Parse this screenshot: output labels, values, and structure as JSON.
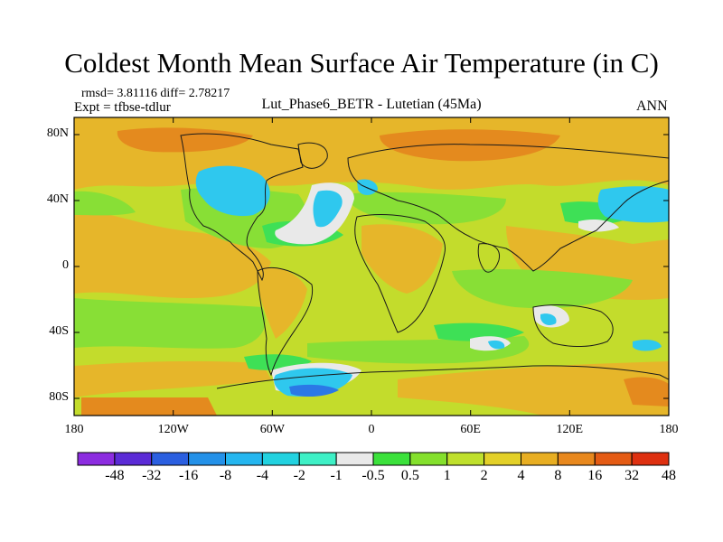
{
  "title": "Coldest Month Mean Surface Air Temperature (in C)",
  "stats": "rmsd= 3.81116 diff= 2.78217",
  "expt": "Expt = tfbse-tdlur",
  "subtitle": "Lut_Phase6_BETR - Lutetian (45Ma)",
  "season": "ANN",
  "lat_labels": [
    "80N",
    "40N",
    "0",
    "40S",
    "80S"
  ],
  "lon_labels": [
    "180",
    "120W",
    "60W",
    "0",
    "60E",
    "120E",
    "180"
  ],
  "colorbar": {
    "colors": [
      "#8c2ce0",
      "#5b2bd6",
      "#2b5fe0",
      "#2491e8",
      "#25b6ef",
      "#22d2e0",
      "#3ef0c6",
      "#e9e9e9",
      "#3be13b",
      "#84e02c",
      "#bfe02c",
      "#e3d028",
      "#e8ae22",
      "#e8881d",
      "#e45b14",
      "#de3010"
    ],
    "labels": [
      "-48",
      "-32",
      "-16",
      "-8",
      "-4",
      "-2",
      "-1",
      "-0.5",
      "0.5",
      "1",
      "2",
      "4",
      "8",
      "16",
      "32",
      "48"
    ]
  },
  "field_colors": {
    "base": "#c3dc2c",
    "warm": "#e6b62a",
    "hot": "#e48a1e",
    "green": "#88df36",
    "bright_green": "#3ee056",
    "neutral": "#e9e9e9",
    "cold": "#2fc8ee",
    "very_cold": "#2b78e6",
    "coast": "#1a1a1a"
  }
}
